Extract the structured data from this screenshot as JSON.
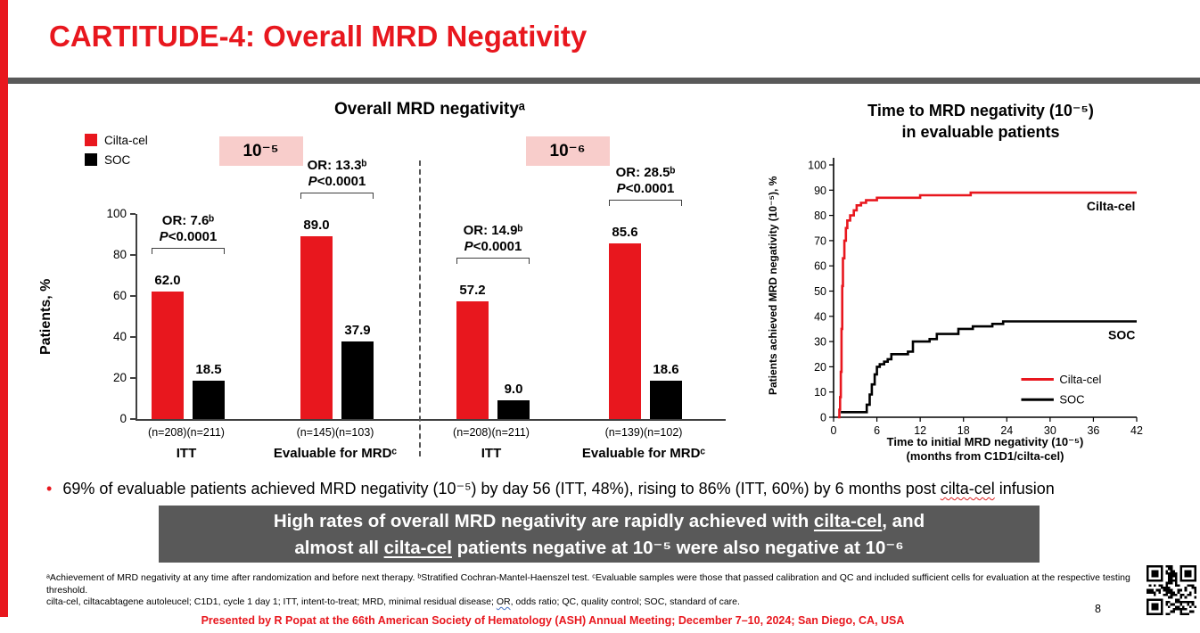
{
  "colors": {
    "accent_red": "#E8171E",
    "dark_gray": "#595959",
    "pink_bg": "#F8CDCB",
    "axis": "#3F3F3F"
  },
  "slide": {
    "title": "CARTITUDE-4: Overall MRD Negativity",
    "page_number": "8",
    "footer": "Presented by R Popat at the 66th American Society of Hematology (ASH) Annual Meeting; December 7–10, 2024; San Diego, CA, USA"
  },
  "bullet": {
    "parts": [
      {
        "text": "69% of evaluable patients achieved MRD negativity (10⁻⁵) by day 56 (ITT, 48%), rising to 86% (ITT, 60%) by 6 months post "
      },
      {
        "text": "cilta-cel",
        "style": "squiggle-red"
      },
      {
        "text": " infusion"
      }
    ]
  },
  "callout": {
    "line1_parts": [
      {
        "text": "High rates of overall MRD negativity are rapidly achieved with "
      },
      {
        "text": "cilta-cel",
        "style": "underline"
      },
      {
        "text": ", and"
      }
    ],
    "line2_parts": [
      {
        "text": "almost all "
      },
      {
        "text": "cilta-cel",
        "style": "underline"
      },
      {
        "text": " patients negative at 10⁻⁵ were also negative at 10⁻⁶"
      }
    ]
  },
  "footnotes": {
    "line1": "ᵃAchievement of MRD negativity at any time after randomization and before next therapy. ᵇStratified Cochran-Mantel-Haenszel test. ᶜEvaluable samples were those that passed calibration and QC and included sufficient cells for evaluation at the respective testing threshold.",
    "line2_parts": [
      {
        "text": "cilta-cel, ciltacabtagene autoleucel; C1D1, cycle 1 day 1; ITT, intent-to-treat; MRD, minimal residual disease; "
      },
      {
        "text": "OR",
        "style": "squiggle-blue"
      },
      {
        "text": ", odds ratio; QC, quality control; SOC, standard of care."
      }
    ]
  },
  "chart_data": [
    {
      "type": "bar",
      "title": "Overall MRD negativityᵃ",
      "ylabel": "Patients, %",
      "ylim": [
        0,
        100
      ],
      "yticks": [
        0,
        20,
        40,
        60,
        80,
        100
      ],
      "legend": [
        {
          "name": "Cilta-cel",
          "color": "#E8171E"
        },
        {
          "name": "SOC",
          "color": "#000000"
        }
      ],
      "thresholds": [
        {
          "label": "10⁻⁵",
          "groups": [
            {
              "category": "ITT",
              "or_label": "OR: 7.6ᵇ",
              "p_label": "P<0.0001",
              "bars": [
                {
                  "series": "Cilta-cel",
                  "value": 62.0,
                  "value_label": "62.0",
                  "n": "(n=208)"
                },
                {
                  "series": "SOC",
                  "value": 18.5,
                  "value_label": "18.5",
                  "n": "(n=211)"
                }
              ]
            },
            {
              "category": "Evaluable for MRDᶜ",
              "or_label": "OR: 13.3ᵇ",
              "p_label": "P<0.0001",
              "bars": [
                {
                  "series": "Cilta-cel",
                  "value": 89.0,
                  "value_label": "89.0",
                  "n": "(n=145)"
                },
                {
                  "series": "SOC",
                  "value": 37.9,
                  "value_label": "37.9",
                  "n": "(n=103)"
                }
              ]
            }
          ]
        },
        {
          "label": "10⁻⁶",
          "groups": [
            {
              "category": "ITT",
              "or_label": "OR: 14.9ᵇ",
              "p_label": "P<0.0001",
              "bars": [
                {
                  "series": "Cilta-cel",
                  "value": 57.2,
                  "value_label": "57.2",
                  "n": "(n=208)"
                },
                {
                  "series": "SOC",
                  "value": 9.0,
                  "value_label": "9.0",
                  "n": "(n=211)"
                }
              ]
            },
            {
              "category": "Evaluable for MRDᶜ",
              "or_label": "OR: 28.5ᵇ",
              "p_label": "P<0.0001",
              "bars": [
                {
                  "series": "Cilta-cel",
                  "value": 85.6,
                  "value_label": "85.6",
                  "n": "(n=139)"
                },
                {
                  "series": "SOC",
                  "value": 18.6,
                  "value_label": "18.6",
                  "n": "(n=102)"
                }
              ]
            }
          ]
        }
      ]
    },
    {
      "type": "line",
      "title": "Time to MRD negativity (10⁻⁵)\nin evaluable patients",
      "ylabel": "Patients achieved MRD negativity (10⁻⁵), %",
      "xlabel_line1": "Time to initial MRD negativity (10⁻⁵)",
      "xlabel_line2": "(months from C1D1/cilta-cel)",
      "xlim": [
        0,
        42
      ],
      "ylim": [
        0,
        100
      ],
      "xticks": [
        0,
        6,
        12,
        18,
        24,
        30,
        36,
        42
      ],
      "yticks": [
        0,
        10,
        20,
        30,
        40,
        50,
        60,
        70,
        80,
        90,
        100
      ],
      "legend_position": "inside-lower-right",
      "series": [
        {
          "name": "Cilta-cel",
          "color": "#E8171E",
          "end_label": "Cilta-cel",
          "label_pos": [
            41.8,
            82
          ],
          "points": [
            [
              0.6,
              0
            ],
            [
              0.8,
              3
            ],
            [
              0.9,
              8
            ],
            [
              1.0,
              18
            ],
            [
              1.1,
              35
            ],
            [
              1.2,
              52
            ],
            [
              1.3,
              63
            ],
            [
              1.5,
              70
            ],
            [
              1.7,
              75
            ],
            [
              1.9,
              78
            ],
            [
              2.3,
              80
            ],
            [
              2.8,
              82
            ],
            [
              3.2,
              84
            ],
            [
              3.8,
              85
            ],
            [
              4.5,
              86
            ],
            [
              6,
              87
            ],
            [
              11,
              87
            ],
            [
              12,
              88
            ],
            [
              18,
              88
            ],
            [
              19,
              89
            ],
            [
              42,
              89
            ]
          ]
        },
        {
          "name": "SOC",
          "color": "#000000",
          "end_label": "SOC",
          "label_pos": [
            41.8,
            31
          ],
          "points": [
            [
              1,
              2
            ],
            [
              4.3,
              2
            ],
            [
              4.6,
              5
            ],
            [
              5,
              9
            ],
            [
              5.3,
              13
            ],
            [
              5.7,
              17
            ],
            [
              6,
              20
            ],
            [
              6.4,
              21
            ],
            [
              7,
              22
            ],
            [
              7.5,
              23
            ],
            [
              8,
              25
            ],
            [
              10.3,
              26
            ],
            [
              11,
              30
            ],
            [
              13.3,
              31
            ],
            [
              14.3,
              33
            ],
            [
              17.3,
              35
            ],
            [
              19.3,
              36
            ],
            [
              22,
              37
            ],
            [
              23.5,
              38
            ],
            [
              42,
              38
            ]
          ]
        }
      ]
    }
  ]
}
